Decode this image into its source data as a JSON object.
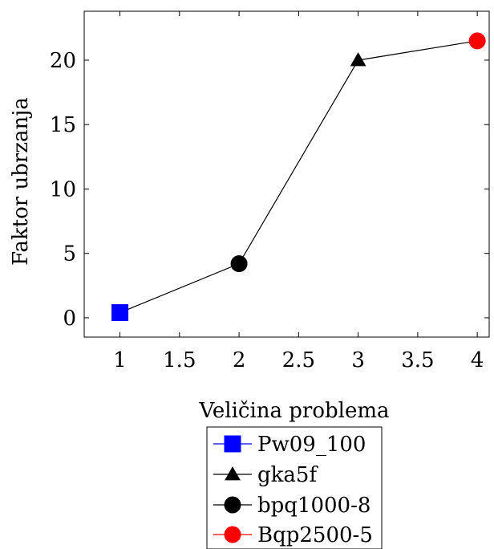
{
  "chart_data": {
    "type": "line",
    "xlabel": "Veličina problema",
    "ylabel": "Faktor ubrzanja",
    "xlim": [
      0.7,
      4.1
    ],
    "ylim": [
      -1.5,
      23.8
    ],
    "xticks": [
      1,
      1.5,
      2,
      2.5,
      3,
      3.5,
      4
    ],
    "xtick_labels": [
      "1",
      "1.5",
      "2",
      "2.5",
      "3",
      "3.5",
      "4"
    ],
    "yticks": [
      0,
      5,
      10,
      15,
      20
    ],
    "ytick_labels": [
      "0",
      "5",
      "10",
      "15",
      "20"
    ],
    "grid": false,
    "legend_position": "bottom",
    "line_color": "#000000",
    "x": [
      1,
      2,
      3,
      4
    ],
    "y": [
      0.4,
      4.2,
      20.0,
      21.5
    ],
    "series": [
      {
        "name": "Pw09_100",
        "x": 1,
        "y": 0.4,
        "marker": "square",
        "color": "#0000ff"
      },
      {
        "name": "gka5f",
        "x": 3,
        "y": 20.0,
        "marker": "triangle",
        "color": "#000000"
      },
      {
        "name": "bpq1000-8",
        "x": 2,
        "y": 4.2,
        "marker": "circle",
        "color": "#000000"
      },
      {
        "name": "Bqp2500-5",
        "x": 4,
        "y": 21.5,
        "marker": "circle",
        "color": "#ff0000"
      }
    ]
  }
}
